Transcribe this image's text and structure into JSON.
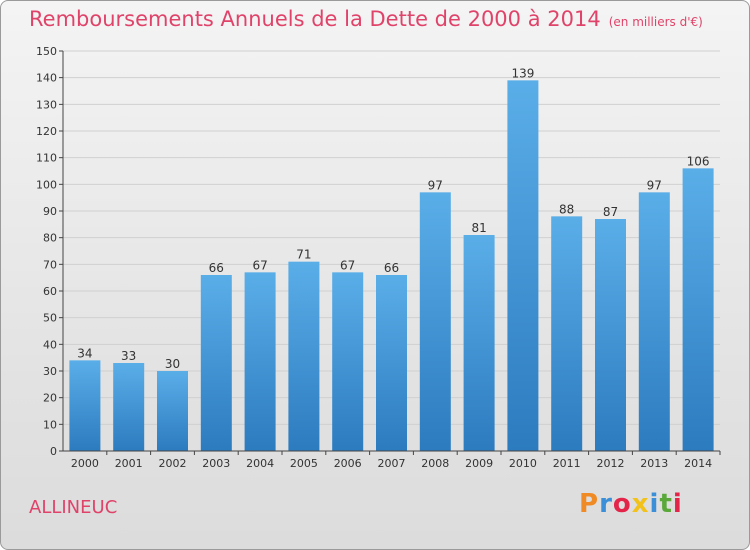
{
  "title": "Remboursements Annuels de la Dette de 2000 à 2014",
  "unit": "(en milliers d'€)",
  "town": "ALLINEUC",
  "logo": "Proxiti",
  "logo_colors": [
    "#f08a24",
    "#3a8fd8",
    "#e3254a",
    "#f2c21a",
    "#3a8fd8",
    "#5aa83a",
    "#e3254a"
  ],
  "colors": {
    "title": "#e0436a",
    "bar_light": "#5aaee8",
    "bar_dark": "#2c7bbf"
  },
  "chart_data": {
    "type": "bar",
    "title": "Remboursements Annuels de la Dette de 2000 à 2014",
    "categories": [
      "2000",
      "2001",
      "2002",
      "2003",
      "2004",
      "2005",
      "2006",
      "2007",
      "2008",
      "2009",
      "2010",
      "2011",
      "2012",
      "2013",
      "2014"
    ],
    "values": [
      34,
      33,
      30,
      66,
      67,
      71,
      67,
      66,
      97,
      81,
      139,
      88,
      87,
      97,
      106
    ],
    "xlabel": "",
    "ylabel": "",
    "ylim": [
      0,
      150
    ],
    "yticks": [
      0,
      10,
      20,
      30,
      40,
      50,
      60,
      70,
      80,
      90,
      100,
      110,
      120,
      130,
      140,
      150
    ],
    "grid": true
  }
}
